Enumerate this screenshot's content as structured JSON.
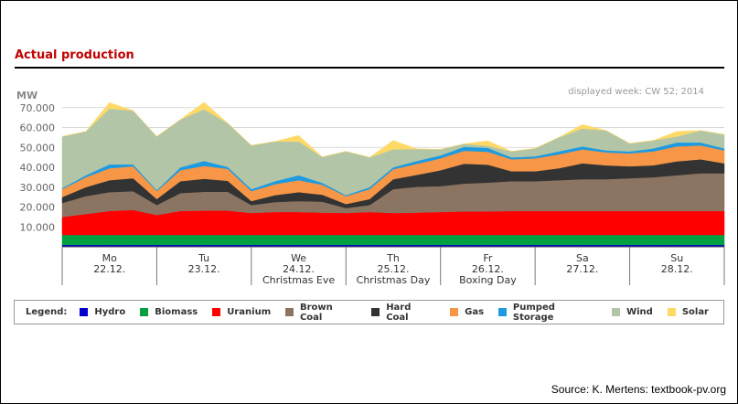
{
  "page": {
    "title": "Actual production",
    "source": "Source: K. Mertens: textbook-pv.org"
  },
  "legend": {
    "title": "Legend:",
    "items": [
      {
        "label": "Hydro",
        "color": "#0000cc"
      },
      {
        "label": "Biomass",
        "color": "#00a040"
      },
      {
        "label": "Uranium",
        "color": "#ff0000"
      },
      {
        "label": "Brown Coal",
        "color": "#8b7462"
      },
      {
        "label": "Hard Coal",
        "color": "#333333"
      },
      {
        "label": "Gas",
        "color": "#f79646"
      },
      {
        "label": "Pumped Storage",
        "color": "#1e9be0"
      },
      {
        "label": "Wind",
        "color": "#b2c6a7"
      },
      {
        "label": "Solar",
        "color": "#ffd966"
      }
    ]
  },
  "chart_data": {
    "type": "area",
    "stacked": true,
    "ylabel": "MW",
    "ylim": [
      0,
      80000
    ],
    "yticks": [
      10000,
      20000,
      30000,
      40000,
      50000,
      60000,
      70000
    ],
    "ytick_labels": [
      "10.000",
      "20.000",
      "30.000",
      "40.000",
      "50.000",
      "60.000",
      "70.000"
    ],
    "note": "displayed week: CW 52; 2014",
    "grid": true,
    "days": [
      {
        "day": "Mo",
        "date": "22.12.",
        "holiday": ""
      },
      {
        "day": "Tu",
        "date": "23.12.",
        "holiday": ""
      },
      {
        "day": "We",
        "date": "24.12.",
        "holiday": "Christmas Eve"
      },
      {
        "day": "Th",
        "date": "25.12.",
        "holiday": "Christmas Day"
      },
      {
        "day": "Fr",
        "date": "26.12.",
        "holiday": "Boxing Day"
      },
      {
        "day": "Sa",
        "date": "27.12.",
        "holiday": ""
      },
      {
        "day": "Su",
        "date": "28.12.",
        "holiday": ""
      }
    ],
    "x_hours": [
      0,
      6,
      12,
      18,
      24,
      30,
      36,
      42,
      48,
      54,
      60,
      66,
      72,
      78,
      84,
      90,
      96,
      102,
      108,
      114,
      120,
      126,
      132,
      138,
      144,
      150,
      156,
      162,
      168
    ],
    "series": [
      {
        "name": "Hydro",
        "color": "#0000cc",
        "values": [
          1000,
          1000,
          1000,
          1000,
          1000,
          1000,
          1000,
          1000,
          1000,
          1000,
          1000,
          1000,
          1000,
          1000,
          1000,
          1000,
          1000,
          1000,
          1000,
          1000,
          1000,
          1000,
          1000,
          1000,
          1000,
          1000,
          1000,
          1000,
          1000
        ]
      },
      {
        "name": "Biomass",
        "color": "#00a040",
        "values": [
          5000,
          5000,
          5000,
          5000,
          5000,
          5000,
          5000,
          5000,
          5000,
          5000,
          5000,
          5000,
          5000,
          5000,
          5000,
          5000,
          5000,
          5000,
          5000,
          5000,
          5000,
          5000,
          5000,
          5000,
          5000,
          5000,
          5000,
          5000,
          5000
        ]
      },
      {
        "name": "Uranium",
        "color": "#ff0000",
        "values": [
          9000,
          10500,
          12000,
          12500,
          10000,
          12000,
          12200,
          12200,
          11000,
          11500,
          11500,
          11200,
          11000,
          11500,
          11000,
          11200,
          11500,
          11800,
          11800,
          12000,
          12000,
          12000,
          12000,
          12000,
          12000,
          12000,
          12000,
          12000,
          12000
        ]
      },
      {
        "name": "Brown Coal",
        "color": "#8b7462",
        "values": [
          7000,
          9000,
          9500,
          9500,
          5000,
          9000,
          9500,
          9500,
          4000,
          5000,
          5500,
          5500,
          2500,
          3500,
          12000,
          13000,
          13000,
          14000,
          14500,
          15000,
          15000,
          15500,
          16000,
          16000,
          16500,
          17000,
          18000,
          19000,
          19000
        ]
      },
      {
        "name": "Hard Coal",
        "color": "#333333",
        "values": [
          3000,
          4500,
          6000,
          6500,
          3000,
          6000,
          6500,
          5500,
          2000,
          3500,
          4500,
          3500,
          2000,
          3000,
          5000,
          6000,
          8000,
          10000,
          9000,
          5000,
          5000,
          6000,
          8000,
          7000,
          6000,
          6000,
          7000,
          7000,
          5000
        ]
      },
      {
        "name": "Gas",
        "color": "#f79646",
        "values": [
          4000,
          5000,
          6000,
          6000,
          4000,
          5500,
          6500,
          6000,
          5000,
          5500,
          6000,
          5000,
          4000,
          5000,
          5000,
          5500,
          6000,
          6500,
          6500,
          6000,
          6500,
          7000,
          7000,
          6500,
          6500,
          7000,
          7500,
          7000,
          6500
        ]
      },
      {
        "name": "Pumped Storage",
        "color": "#1e9be0",
        "values": [
          500,
          1000,
          2000,
          1000,
          500,
          1500,
          2500,
          1000,
          1000,
          1500,
          2500,
          1000,
          500,
          1000,
          1000,
          1500,
          1500,
          2000,
          2000,
          1000,
          1000,
          1500,
          1500,
          1000,
          1000,
          1500,
          2000,
          1500,
          1000
        ]
      },
      {
        "name": "Wind",
        "color": "#b2c6a7",
        "values": [
          26000,
          22000,
          28000,
          27000,
          27000,
          24000,
          26000,
          22000,
          22000,
          20000,
          17000,
          13000,
          22000,
          15000,
          9000,
          6000,
          3000,
          1500,
          1000,
          3000,
          4000,
          7000,
          9000,
          10000,
          4000,
          4000,
          3000,
          6000,
          7000
        ]
      },
      {
        "name": "Solar",
        "color": "#ffd966",
        "values": [
          0,
          0,
          3000,
          0,
          0,
          0,
          3500,
          0,
          0,
          0,
          3000,
          0,
          0,
          0,
          4500,
          0,
          0,
          0,
          2500,
          0,
          0,
          0,
          2000,
          0,
          0,
          0,
          2500,
          0,
          0
        ]
      }
    ]
  }
}
